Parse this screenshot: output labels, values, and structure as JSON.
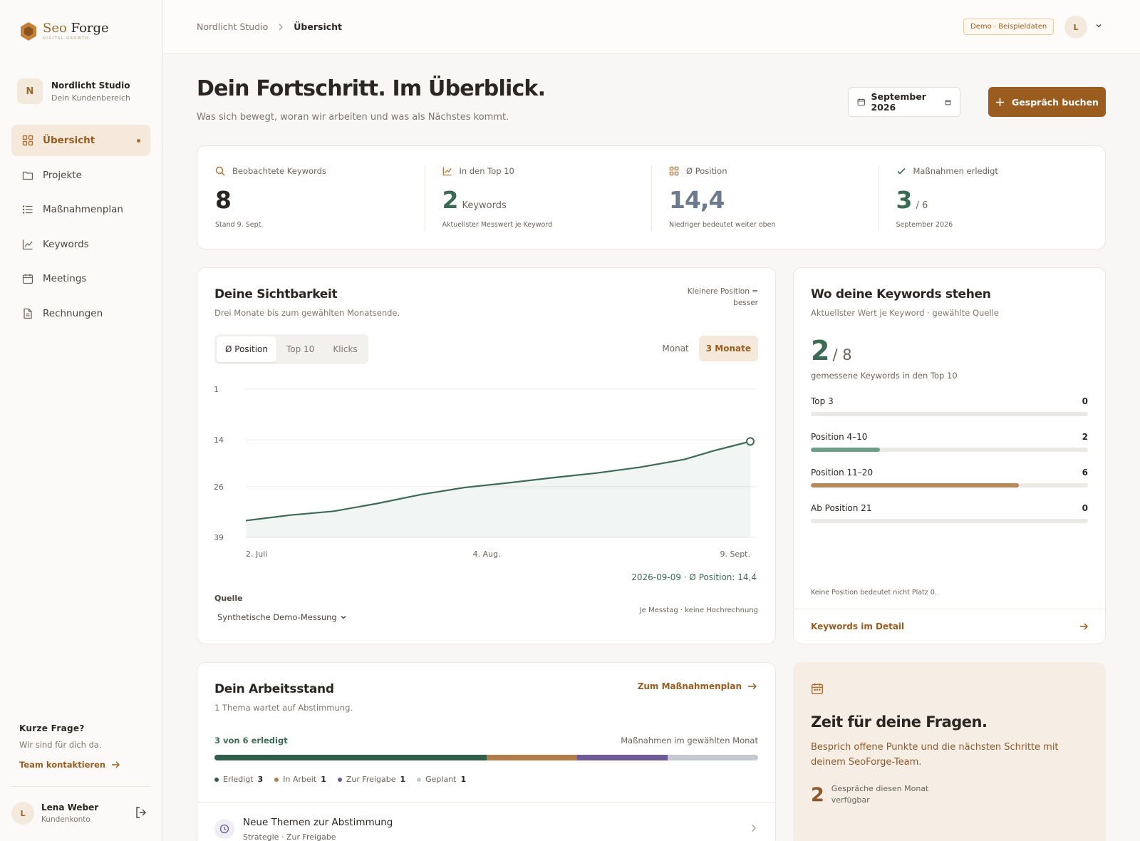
{
  "brand": {
    "seo": "Seo",
    "forge": "Forge",
    "tagline": "DIGITAL GROWTH"
  },
  "client": {
    "initial": "N",
    "name": "Nordlicht Studio",
    "sub": "Dein Kundenbereich"
  },
  "nav": [
    {
      "label": "Übersicht",
      "icon": "grid-icon",
      "active": true
    },
    {
      "label": "Projekte",
      "icon": "folder-icon"
    },
    {
      "label": "Maßnahmenplan",
      "icon": "list-icon"
    },
    {
      "label": "Keywords",
      "icon": "trend-icon"
    },
    {
      "label": "Meetings",
      "icon": "calendar-icon"
    },
    {
      "label": "Rechnungen",
      "icon": "document-icon"
    }
  ],
  "help": {
    "title": "Kurze Frage?",
    "sub": "Wir sind für dich da.",
    "link": "Team kontaktieren"
  },
  "user": {
    "initial": "L",
    "name": "Lena Weber",
    "role": "Kundenkonto"
  },
  "topbar": {
    "crumb_root": "Nordlicht Studio",
    "crumb_current": "Übersicht",
    "badge": "Demo · Beispieldaten",
    "avatar": "L"
  },
  "header": {
    "title": "Dein Fortschritt. Im Überblick.",
    "subtitle": "Was sich bewegt, woran wir arbeiten und was als Nächstes kommt.",
    "month": "September 2026",
    "book_label": "Gespräch buchen"
  },
  "kpis": [
    {
      "label": "Beobachtete Keywords",
      "value": "8",
      "unit": "",
      "note": "Stand 9. Sept.",
      "color": "#2a2622",
      "icon": "search-icon"
    },
    {
      "label": "In den Top 10",
      "value": "2",
      "unit": "Keywords",
      "note": "Aktuellster Messwert je Keyword",
      "color": "#3c6b55",
      "icon": "trend-icon"
    },
    {
      "label": "Ø Position",
      "value": "14,4",
      "unit": "",
      "note": "Niedriger bedeutet weiter oben",
      "color": "#6b7a8c",
      "icon": "grid-icon"
    },
    {
      "label": "Maßnahmen erledigt",
      "value": "3",
      "unit": "/ 6",
      "note": "September 2026",
      "color": "#3c6b55",
      "icon": "check-icon"
    }
  ],
  "visibility": {
    "title": "Deine Sichtbarkeit",
    "subtitle": "Drei Monate bis zum gewählten Monatsende.",
    "hint_line1": "Kleinere Position =",
    "hint_line2": "besser",
    "tabs": [
      "Ø Position",
      "Top 10",
      "Klicks"
    ],
    "ranges": [
      "Monat",
      "3 Monate"
    ],
    "readout": "2026-09-09 · Ø Position: 14,4",
    "source_label": "Quelle",
    "source_value": "Synthetische Demo-Messung",
    "source_note": "Je Messtag · keine Hochrechnung"
  },
  "chart_data": {
    "type": "area",
    "ylabel": "",
    "y_inverted": true,
    "yticks": [
      1,
      14,
      26,
      39
    ],
    "ylim": [
      1,
      39
    ],
    "xticks": [
      "2. Juli",
      "4. Aug.",
      "9. Sept."
    ],
    "x": [
      "2026-07-02",
      "2026-07-08",
      "2026-07-14",
      "2026-07-20",
      "2026-07-26",
      "2026-08-01",
      "2026-08-07",
      "2026-08-13",
      "2026-08-19",
      "2026-08-25",
      "2026-08-31",
      "2026-09-04",
      "2026-09-09"
    ],
    "series": [
      {
        "values": [
          34.7,
          33.3,
          32.3,
          30.3,
          28.0,
          26.2,
          25.0,
          23.7,
          22.5,
          21.0,
          19.0,
          16.8,
          14.4
        ]
      }
    ],
    "color": "#3c6b55",
    "grid": true
  },
  "keywords_dist": {
    "title": "Wo deine Keywords stehen",
    "subtitle": "Aktuellster Wert je Keyword · gewählte Quelle",
    "big": "2",
    "total": "/ 8",
    "note": "gemessene Keywords in den Top 10",
    "rows": [
      {
        "label": "Top 3",
        "value": "0",
        "fraction": 0,
        "color": "#6f9e86"
      },
      {
        "label": "Position 4–10",
        "value": "2",
        "fraction": 0.25,
        "color": "#6f9e86"
      },
      {
        "label": "Position 11–20",
        "value": "6",
        "fraction": 0.75,
        "color": "#b58a5a"
      },
      {
        "label": "Ab Position 21",
        "value": "0",
        "fraction": 0,
        "color": "#b58a5a"
      }
    ],
    "foot": "Keine Position bedeutet nicht Platz 0.",
    "link": "Keywords im Detail"
  },
  "work": {
    "title": "Dein Arbeitsstand",
    "subtitle": "1 Thema wartet auf Abstimmung.",
    "link": "Zum Maßnahmenplan",
    "done_text": "3 von 6 erledigt",
    "right_text": "Maßnahmen im gewählten Monat",
    "segments": [
      {
        "label": "Erledigt",
        "count": "3",
        "value": 3,
        "color": "#2f5e4a"
      },
      {
        "label": "In Arbeit",
        "count": "1",
        "value": 1,
        "color": "#b07d4a"
      },
      {
        "label": "Zur Freigabe",
        "count": "1",
        "value": 1,
        "color": "#6e5a94"
      },
      {
        "label": "Geplant",
        "count": "1",
        "value": 1,
        "color": "#c4c8cf"
      }
    ],
    "task_title": "Neue Themen zur Abstimmung",
    "task_sub": "Strategie · Zur Freigabe"
  },
  "meeting": {
    "title": "Zeit für deine Fragen.",
    "subtitle": "Besprich offene Punkte und die nächsten Schritte mit deinem SeoForge-Team.",
    "count": "2",
    "count_text": "Gespräche diesen Monat verfügbar"
  }
}
